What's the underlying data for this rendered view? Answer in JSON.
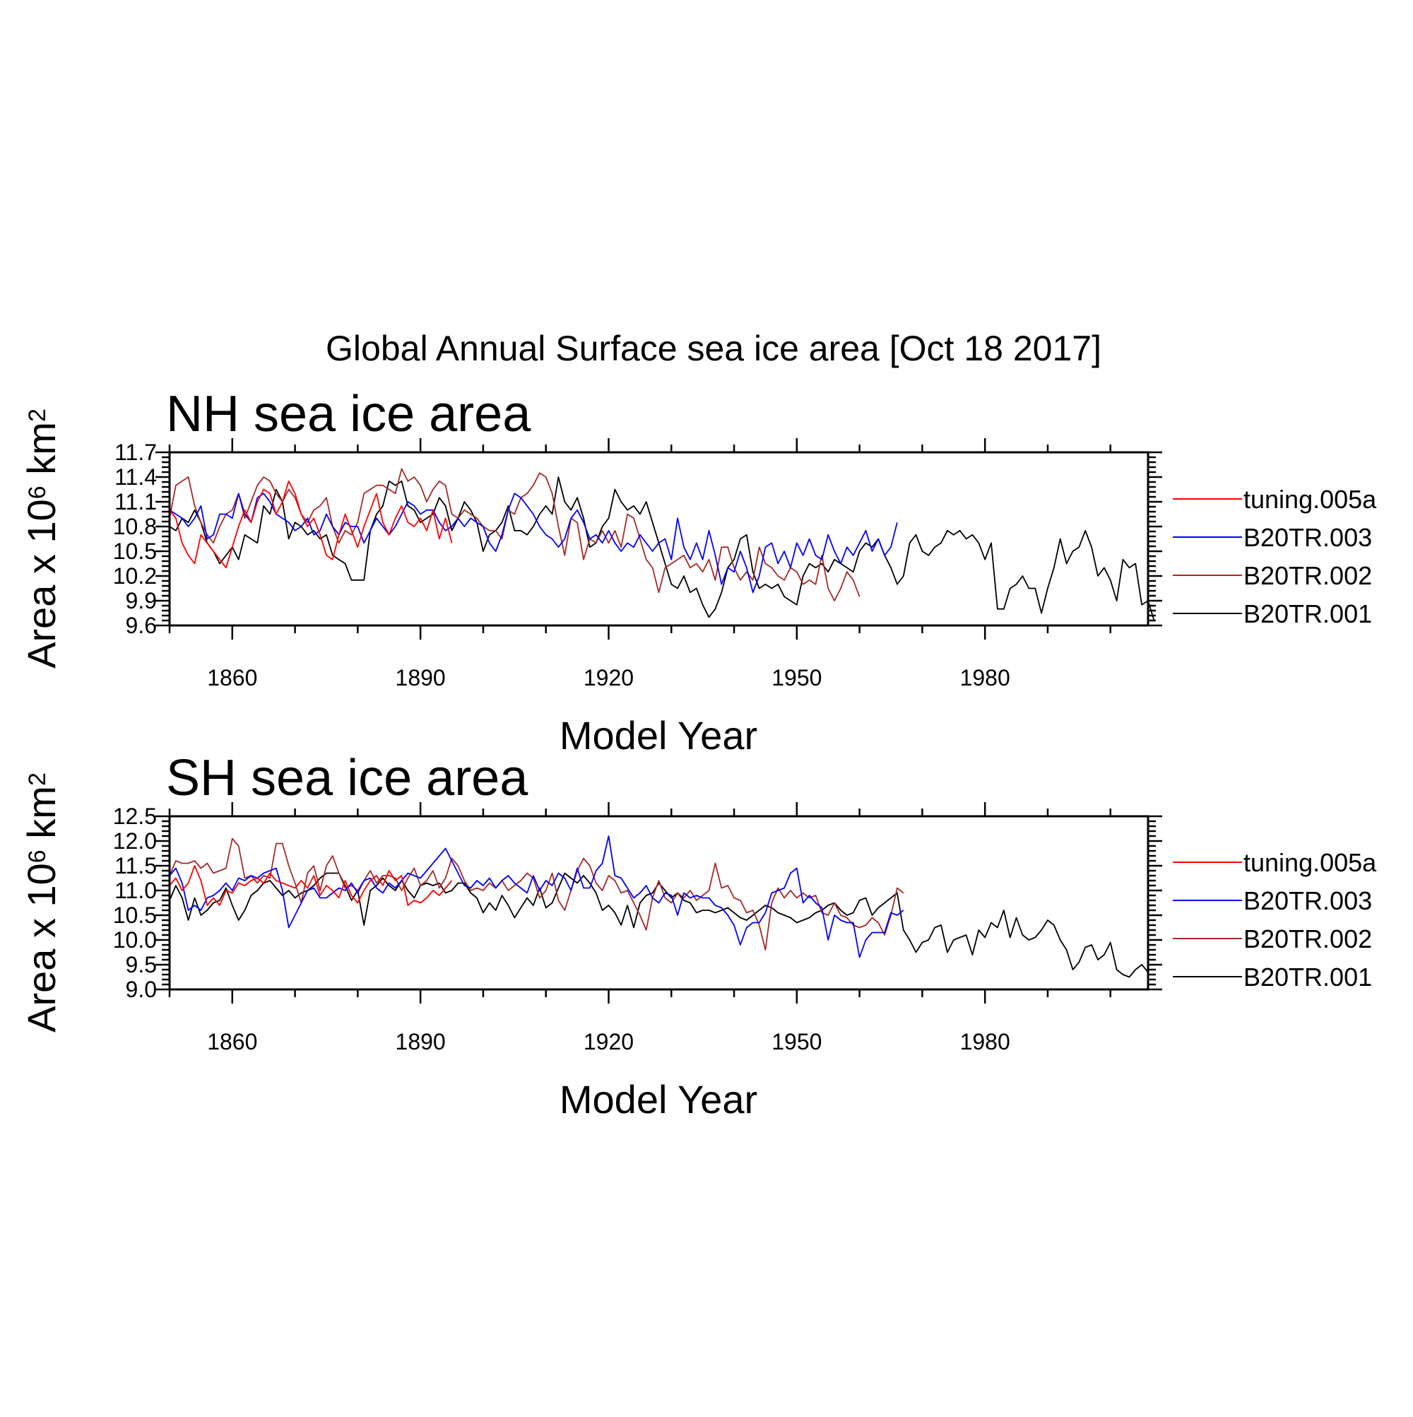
{
  "title": "Global Annual Surface sea ice area [Oct 18 2017]",
  "chart_data": [
    {
      "type": "line",
      "title": "NH sea ice area",
      "xlabel": "Model Year",
      "ylabel_base": "Area x 10",
      "ylabel_exp": "6",
      "ylabel_unit": " km",
      "ylabel_unit_exp": "2",
      "xlim": [
        1850,
        2006
      ],
      "ylim": [
        9.6,
        11.7
      ],
      "xticks": [
        1860,
        1890,
        1920,
        1950,
        1980
      ],
      "yticks": [
        "9.6",
        "9.9",
        "10.2",
        "10.5",
        "10.8",
        "11.1",
        "11.4",
        "11.7"
      ],
      "legend_position": "right",
      "series": [
        {
          "name": "tuning.005a",
          "color": "#ff0000",
          "x0": 1850,
          "values": [
            11.0,
            10.9,
            10.6,
            10.45,
            10.35,
            10.7,
            10.6,
            10.5,
            10.4,
            10.3,
            10.55,
            10.8,
            11.0,
            10.85,
            11.1,
            11.25,
            11.2,
            10.95,
            11.1,
            11.35,
            11.2,
            10.95,
            10.8,
            10.9,
            10.7,
            10.45,
            10.4,
            10.7,
            10.95,
            10.75,
            10.55,
            10.8,
            11.0,
            11.2,
            10.85,
            10.7,
            10.9,
            11.05,
            10.85,
            10.8,
            10.9,
            10.75,
            11.0,
            10.65,
            10.9,
            10.6
          ]
        },
        {
          "name": "B20TR.003",
          "color": "#0000ff",
          "x0": 1850,
          "values": [
            11.0,
            10.95,
            10.9,
            10.8,
            10.9,
            11.05,
            10.65,
            10.7,
            10.95,
            10.95,
            10.9,
            11.2,
            10.95,
            10.85,
            11.15,
            11.2,
            11.1,
            10.95,
            10.9,
            10.85,
            10.75,
            10.8,
            10.9,
            10.7,
            10.75,
            10.95,
            10.8,
            10.7,
            10.85,
            10.8,
            10.8,
            10.6,
            10.75,
            10.9,
            10.8,
            10.7,
            10.8,
            10.95,
            11.1,
            11.05,
            10.95,
            11.0,
            11.0,
            10.85,
            10.75,
            10.8,
            10.9,
            10.8,
            10.9,
            10.85,
            10.8,
            10.6,
            10.5,
            10.7,
            11.0,
            11.2,
            11.15,
            11.05,
            10.95,
            10.8,
            10.7,
            10.65,
            10.55,
            10.65,
            10.9,
            11.0,
            10.85,
            10.65,
            10.7,
            10.6,
            10.75,
            10.6,
            10.5,
            10.6,
            10.55,
            10.7,
            10.6,
            10.5,
            10.6,
            10.65,
            10.4,
            10.9,
            10.55,
            10.4,
            10.6,
            10.4,
            10.75,
            10.45,
            10.1,
            10.3,
            10.25,
            10.5,
            10.3,
            10.0,
            10.2,
            10.55,
            10.6,
            10.35,
            10.5,
            10.3,
            10.6,
            10.45,
            10.65,
            10.45,
            10.4,
            10.7,
            10.5,
            10.35,
            10.55,
            10.45,
            10.6,
            10.75,
            10.5,
            10.65,
            10.45,
            10.55,
            10.85
          ]
        },
        {
          "name": "B20TR.002",
          "color": "#a52a2a",
          "x0": 1850,
          "values": [
            10.9,
            11.3,
            11.35,
            11.4,
            11.05,
            10.85,
            10.7,
            10.6,
            10.8,
            10.95,
            11.0,
            11.2,
            10.9,
            11.1,
            11.3,
            11.4,
            11.35,
            11.2,
            11.1,
            11.25,
            11.15,
            10.95,
            10.85,
            11.0,
            11.05,
            11.15,
            10.8,
            10.6,
            10.75,
            10.7,
            10.85,
            11.2,
            11.25,
            11.3,
            11.3,
            11.25,
            11.2,
            11.5,
            11.35,
            11.4,
            11.3,
            11.1,
            11.25,
            11.35,
            11.3,
            10.95,
            10.9,
            11.0,
            10.95,
            10.9,
            10.8,
            10.75,
            10.75,
            10.65,
            11.0,
            10.95,
            11.15,
            11.2,
            11.3,
            11.45,
            11.4,
            11.2,
            10.8,
            10.45,
            10.9,
            10.85,
            10.4,
            10.65,
            10.6,
            10.75,
            10.6,
            10.75,
            10.55,
            10.95,
            10.9,
            10.65,
            10.4,
            10.3,
            10.0,
            10.3,
            10.35,
            10.4,
            10.45,
            10.3,
            10.35,
            10.25,
            10.4,
            10.15,
            10.55,
            10.55,
            10.3,
            10.15,
            10.25,
            10.15,
            10.55,
            10.35,
            10.3,
            10.2,
            10.15,
            10.3,
            10.25,
            10.1,
            10.15,
            10.1,
            10.45,
            10.05,
            9.9,
            10.05,
            10.25,
            10.15,
            9.95
          ]
        },
        {
          "name": "B20TR.001",
          "color": "#000000",
          "x0": 1850,
          "values": [
            10.8,
            10.75,
            10.9,
            10.85,
            11.0,
            10.85,
            10.6,
            10.5,
            10.35,
            10.45,
            10.55,
            10.4,
            10.7,
            10.65,
            10.6,
            11.05,
            10.95,
            11.25,
            11.1,
            10.65,
            10.85,
            10.8,
            10.7,
            10.75,
            10.65,
            10.7,
            10.45,
            10.4,
            10.35,
            10.15,
            10.15,
            10.15,
            10.75,
            10.95,
            11.05,
            11.35,
            11.3,
            11.35,
            11.05,
            11.0,
            10.85,
            10.9,
            10.95,
            11.15,
            11.05,
            10.75,
            10.9,
            11.1,
            11.0,
            10.85,
            10.5,
            10.7,
            10.75,
            10.85,
            11.05,
            10.75,
            10.75,
            10.7,
            10.8,
            10.95,
            11.05,
            10.95,
            11.4,
            11.1,
            11.0,
            11.15,
            10.9,
            10.55,
            10.6,
            10.8,
            10.9,
            11.25,
            11.1,
            11.0,
            11.05,
            10.95,
            11.1,
            10.85,
            10.6,
            10.35,
            10.1,
            10.05,
            10.2,
            10.0,
            10.05,
            9.85,
            9.7,
            9.8,
            10.0,
            10.3,
            10.4,
            10.65,
            10.7,
            10.25,
            10.05,
            10.1,
            10.05,
            10.1,
            9.95,
            9.9,
            9.85,
            10.2,
            10.35,
            10.3,
            10.35,
            10.25,
            10.4,
            10.35,
            10.3,
            10.25,
            10.5,
            10.6,
            10.55,
            10.65,
            10.45,
            10.3,
            10.1,
            10.2,
            10.6,
            10.7,
            10.5,
            10.45,
            10.55,
            10.6,
            10.75,
            10.7,
            10.75,
            10.65,
            10.7,
            10.6,
            10.4,
            10.6,
            9.8,
            9.8,
            10.05,
            10.1,
            10.2,
            10.05,
            10.05,
            9.75,
            10.05,
            10.3,
            10.65,
            10.35,
            10.5,
            10.55,
            10.75,
            10.55,
            10.2,
            10.3,
            10.15,
            9.9,
            10.4,
            10.3,
            10.35,
            9.85,
            9.9,
            9.65
          ]
        }
      ]
    },
    {
      "type": "line",
      "title": "SH sea ice area",
      "xlabel": "Model Year",
      "ylabel_base": "Area x 10",
      "ylabel_exp": "6",
      "ylabel_unit": " km",
      "ylabel_unit_exp": "2",
      "xlim": [
        1850,
        2006
      ],
      "ylim": [
        9.0,
        12.5
      ],
      "xticks": [
        1860,
        1890,
        1920,
        1950,
        1980
      ],
      "yticks": [
        "9.0",
        "9.5",
        "10.0",
        "10.5",
        "11.0",
        "11.5",
        "12.0",
        "12.5"
      ],
      "legend_position": "right",
      "series": [
        {
          "name": "tuning.005a",
          "color": "#ff0000",
          "x0": 1850,
          "values": [
            11.1,
            11.25,
            11.0,
            11.15,
            11.5,
            11.2,
            10.7,
            10.85,
            10.7,
            11.0,
            10.95,
            11.15,
            11.1,
            11.2,
            11.25,
            11.15,
            11.35,
            11.2,
            11.15,
            11.1,
            11.05,
            11.2,
            11.05,
            11.3,
            10.9,
            11.1,
            11.0,
            10.85,
            11.2,
            10.9,
            10.75,
            11.0,
            11.2,
            11.3,
            11.1,
            11.4,
            11.2,
            11.3,
            10.7,
            10.8,
            10.75,
            10.85,
            11.0,
            10.9,
            11.05,
            11.2
          ]
        },
        {
          "name": "B20TR.003",
          "color": "#0000ff",
          "x0": 1850,
          "values": [
            11.3,
            11.45,
            11.15,
            10.6,
            10.7,
            10.6,
            10.85,
            10.9,
            11.0,
            11.15,
            11.0,
            11.25,
            11.2,
            11.3,
            11.25,
            11.35,
            11.4,
            11.45,
            11.0,
            10.25,
            10.5,
            10.75,
            11.0,
            11.05,
            10.85,
            10.85,
            10.95,
            11.05,
            11.0,
            11.15,
            10.95,
            11.2,
            11.25,
            11.05,
            10.95,
            11.15,
            11.05,
            11.2,
            11.35,
            11.3,
            11.25,
            11.4,
            11.55,
            11.7,
            11.85,
            11.6,
            11.35,
            11.1,
            11.05,
            11.2,
            11.1,
            11.25,
            11.05,
            11.2,
            11.3,
            11.15,
            11.05,
            10.95,
            11.3,
            11.0,
            11.2,
            11.1,
            11.35,
            11.25,
            11.0,
            11.45,
            11.05,
            11.05,
            11.4,
            11.55,
            12.1,
            11.3,
            11.25,
            11.05,
            10.85,
            10.95,
            11.1,
            10.85,
            10.75,
            10.95,
            10.9,
            10.5,
            10.95,
            10.85,
            10.9,
            10.85,
            10.85,
            10.7,
            10.65,
            10.5,
            10.3,
            9.9,
            10.25,
            10.35,
            10.35,
            10.55,
            10.95,
            11.0,
            11.05,
            11.35,
            11.45,
            10.75,
            10.9,
            10.75,
            10.65,
            10.0,
            10.5,
            10.4,
            10.35,
            10.35,
            9.65,
            10.0,
            10.15,
            10.15,
            10.15,
            10.55,
            10.5,
            10.6
          ]
        },
        {
          "name": "B20TR.002",
          "color": "#a52a2a",
          "x0": 1850,
          "values": [
            11.3,
            11.6,
            11.55,
            11.55,
            11.6,
            11.45,
            11.55,
            11.35,
            11.4,
            11.45,
            12.05,
            11.9,
            11.25,
            11.3,
            11.15,
            11.3,
            11.25,
            11.95,
            11.95,
            11.5,
            11.15,
            10.75,
            11.35,
            11.5,
            11.0,
            11.5,
            11.7,
            11.35,
            11.05,
            11.1,
            11.0,
            11.2,
            11.4,
            11.15,
            11.3,
            11.3,
            11.25,
            11.0,
            11.25,
            11.45,
            11.1,
            11.2,
            11.4,
            11.05,
            11.25,
            11.65,
            11.5,
            11.2,
            11.0,
            11.05,
            11.0,
            11.15,
            11.05,
            11.2,
            11.0,
            11.1,
            11.2,
            11.35,
            11.25,
            10.85,
            11.0,
            11.35,
            10.8,
            10.6,
            11.0,
            11.4,
            11.65,
            11.5,
            11.15,
            11.0,
            11.3,
            11.2,
            10.95,
            11.0,
            10.75,
            10.5,
            10.2,
            10.85,
            11.2,
            10.85,
            10.75,
            10.95,
            10.85,
            11.0,
            10.8,
            10.9,
            11.0,
            11.55,
            11.05,
            11.1,
            10.85,
            10.8,
            10.55,
            10.6,
            10.3,
            9.8,
            10.75,
            11.05,
            10.85,
            11.0,
            10.85,
            10.95,
            10.85,
            10.9,
            10.55,
            10.5,
            10.75,
            10.5,
            10.45,
            10.3,
            10.25,
            10.3,
            10.45,
            10.35,
            10.1,
            10.5,
            11.05,
            10.95
          ]
        },
        {
          "name": "B20TR.001",
          "color": "#000000",
          "x0": 1850,
          "values": [
            10.8,
            11.1,
            10.85,
            10.4,
            10.85,
            10.5,
            10.6,
            10.75,
            10.8,
            11.05,
            10.7,
            10.4,
            10.6,
            10.9,
            11.0,
            11.15,
            11.2,
            11.05,
            10.9,
            11.0,
            10.85,
            10.95,
            11.0,
            11.1,
            11.25,
            11.35,
            11.35,
            11.35,
            11.1,
            10.8,
            11.0,
            10.3,
            11.0,
            11.1,
            11.25,
            11.1,
            11.0,
            11.2,
            11.0,
            10.85,
            11.1,
            11.15,
            11.1,
            11.15,
            10.95,
            11.0,
            11.15,
            11.15,
            10.95,
            10.85,
            10.55,
            10.75,
            10.6,
            10.9,
            10.7,
            10.45,
            10.65,
            10.85,
            10.7,
            11.05,
            10.65,
            10.75,
            11.05,
            11.35,
            11.25,
            11.15,
            11.3,
            11.15,
            10.95,
            10.6,
            10.7,
            10.55,
            10.3,
            10.7,
            10.25,
            10.75,
            10.9,
            10.95,
            11.15,
            11.0,
            10.85,
            10.95,
            10.8,
            10.75,
            10.55,
            10.6,
            10.6,
            10.55,
            10.6,
            10.65,
            10.55,
            10.45,
            10.4,
            10.5,
            10.6,
            10.7,
            10.65,
            10.55,
            10.5,
            10.45,
            10.35,
            10.4,
            10.45,
            10.55,
            10.6,
            10.7,
            10.75,
            10.6,
            10.5,
            10.55,
            10.8,
            10.85,
            10.5,
            10.65,
            10.75,
            10.85,
            10.95,
            10.2,
            10.0,
            9.75,
            9.95,
            10.0,
            10.25,
            10.3,
            9.75,
            10.0,
            10.05,
            10.1,
            9.7,
            10.2,
            10.05,
            10.35,
            10.25,
            10.6,
            10.05,
            10.45,
            10.1,
            10.0,
            10.05,
            10.2,
            10.4,
            10.3,
            10.0,
            9.8,
            9.4,
            9.55,
            9.85,
            9.9,
            9.6,
            9.7,
            9.95,
            9.4,
            9.3,
            9.25,
            9.4,
            9.5,
            9.35
          ]
        }
      ]
    }
  ]
}
